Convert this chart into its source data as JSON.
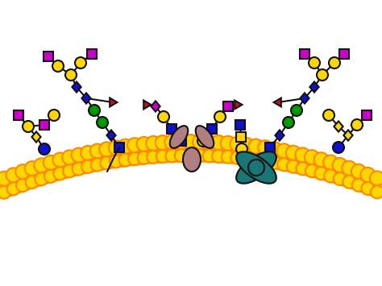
{
  "bg": "#ffffff",
  "orange": "#FF8800",
  "yellow": "#FFD700",
  "blue": "#1111CC",
  "green": "#009900",
  "magenta": "#CC00CC",
  "red": "#CC1111",
  "teal": "#177777",
  "mauve": "#B08080",
  "black": "#111111",
  "lw": 1.5,
  "r_circle": 7,
  "r_small": 6
}
